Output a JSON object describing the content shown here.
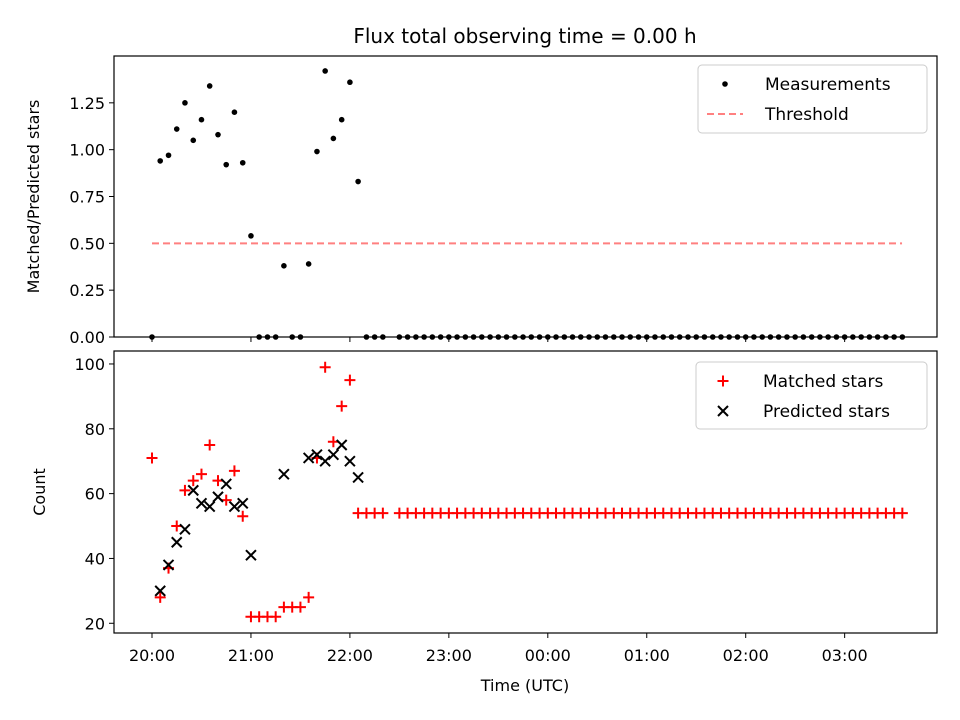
{
  "chart_data": [
    {
      "type": "scatter",
      "title": "Flux total observing time = 0.00 h",
      "xlabel": "",
      "ylabel": "Matched/Predicted stars",
      "ylim": [
        0,
        1.5
      ],
      "yticks": [
        "0.00",
        "0.25",
        "0.50",
        "0.75",
        "1.00",
        "1.25"
      ],
      "legend_position": "upper right",
      "x_units": "hours since 20:00 UTC (axis shows clock time)",
      "series": [
        {
          "name": "Measurements",
          "style": "dots",
          "color": "#000000",
          "x": [
            0.0,
            0.083,
            0.167,
            0.25,
            0.333,
            0.417,
            0.5,
            0.583,
            0.667,
            0.75,
            0.833,
            0.917,
            1.0,
            1.083,
            1.167,
            1.25,
            1.333,
            1.417,
            1.5,
            1.583,
            1.667,
            1.75,
            1.833,
            1.917,
            2.0,
            2.083,
            2.167,
            2.25,
            2.333,
            2.5,
            2.583,
            2.667,
            2.75,
            2.833,
            2.917,
            3.0,
            3.083,
            3.167,
            3.25,
            3.333,
            3.417,
            3.5,
            3.583,
            3.667,
            3.75,
            3.833,
            3.917,
            4.0,
            4.083,
            4.167,
            4.25,
            4.333,
            4.417,
            4.5,
            4.583,
            4.667,
            4.75,
            4.833,
            4.917,
            5.0,
            5.083,
            5.167,
            5.25,
            5.333,
            5.417,
            5.5,
            5.583,
            5.667,
            5.75,
            5.833,
            5.917,
            6.0,
            6.083,
            6.167,
            6.25,
            6.333,
            6.417,
            6.5,
            6.583,
            6.667,
            6.75,
            6.833,
            6.917,
            7.0,
            7.083,
            7.167,
            7.25,
            7.333,
            7.417,
            7.5,
            7.583
          ],
          "y": [
            0,
            0.94,
            0.97,
            1.11,
            1.25,
            1.05,
            1.16,
            1.34,
            1.08,
            0.92,
            1.2,
            0.93,
            0.54,
            0,
            0,
            0,
            0.38,
            0,
            0,
            0.39,
            0.99,
            1.42,
            1.06,
            1.16,
            1.36,
            0.83,
            0,
            0,
            0,
            0,
            0,
            0,
            0,
            0,
            0,
            0,
            0,
            0,
            0,
            0,
            0,
            0,
            0,
            0,
            0,
            0,
            0,
            0,
            0,
            0,
            0,
            0,
            0,
            0,
            0,
            0,
            0,
            0,
            0,
            0,
            0,
            0,
            0,
            0,
            0,
            0,
            0,
            0,
            0,
            0,
            0,
            0,
            0,
            0,
            0,
            0,
            0,
            0,
            0,
            0,
            0,
            0,
            0,
            0,
            0,
            0,
            0,
            0,
            0,
            0,
            0
          ]
        },
        {
          "name": "Threshold",
          "style": "dashed-line",
          "color": "#ff8080",
          "x": [
            0,
            7.58
          ],
          "y": [
            0.5,
            0.5
          ]
        }
      ]
    },
    {
      "type": "scatter",
      "title": "",
      "xlabel": "Time (UTC)",
      "ylabel": "Count",
      "ylim": [
        17,
        104
      ],
      "yticks": [
        "20",
        "40",
        "60",
        "80",
        "100"
      ],
      "xticks": [
        "20:00",
        "21:00",
        "22:00",
        "23:00",
        "00:00",
        "01:00",
        "02:00",
        "03:00"
      ],
      "legend_position": "upper right",
      "x_units": "hours since 20:00 UTC (axis shows clock time)",
      "series": [
        {
          "name": "Matched stars",
          "marker": "plus",
          "color": "#ff0000",
          "x": [
            0.0,
            0.083,
            0.167,
            0.25,
            0.333,
            0.417,
            0.5,
            0.583,
            0.667,
            0.75,
            0.833,
            0.917,
            1.0,
            1.083,
            1.167,
            1.25,
            1.333,
            1.417,
            1.5,
            1.583,
            1.667,
            1.75,
            1.833,
            1.917,
            2.0,
            2.083,
            2.167,
            2.25,
            2.333,
            2.5,
            2.583,
            2.667,
            2.75,
            2.833,
            2.917,
            3.0,
            3.083,
            3.167,
            3.25,
            3.333,
            3.417,
            3.5,
            3.583,
            3.667,
            3.75,
            3.833,
            3.917,
            4.0,
            4.083,
            4.167,
            4.25,
            4.333,
            4.417,
            4.5,
            4.583,
            4.667,
            4.75,
            4.833,
            4.917,
            5.0,
            5.083,
            5.167,
            5.25,
            5.333,
            5.417,
            5.5,
            5.583,
            5.667,
            5.75,
            5.833,
            5.917,
            6.0,
            6.083,
            6.167,
            6.25,
            6.333,
            6.417,
            6.5,
            6.583,
            6.667,
            6.75,
            6.833,
            6.917,
            7.0,
            7.083,
            7.167,
            7.25,
            7.333,
            7.417,
            7.5,
            7.583
          ],
          "y": [
            71,
            28,
            37,
            50,
            61,
            64,
            66,
            75,
            64,
            58,
            67,
            53,
            22,
            22,
            22,
            22,
            25,
            25,
            25,
            28,
            71,
            99,
            76,
            87,
            95,
            54,
            54,
            54,
            54,
            54,
            54,
            54,
            54,
            54,
            54,
            54,
            54,
            54,
            54,
            54,
            54,
            54,
            54,
            54,
            54,
            54,
            54,
            54,
            54,
            54,
            54,
            54,
            54,
            54,
            54,
            54,
            54,
            54,
            54,
            54,
            54,
            54,
            54,
            54,
            54,
            54,
            54,
            54,
            54,
            54,
            54,
            54,
            54,
            54,
            54,
            54,
            54,
            54,
            54,
            54,
            54,
            54,
            54,
            54,
            54,
            54,
            54,
            54,
            54,
            54,
            54
          ]
        },
        {
          "name": "Predicted stars",
          "marker": "x",
          "color": "#000000",
          "x": [
            0.083,
            0.167,
            0.25,
            0.333,
            0.417,
            0.5,
            0.583,
            0.667,
            0.75,
            0.833,
            0.917,
            1.0,
            1.333,
            1.583,
            1.667,
            1.75,
            1.833,
            1.917,
            2.0,
            2.083
          ],
          "y": [
            30,
            38,
            45,
            49,
            61,
            57,
            56,
            59,
            63,
            56,
            57,
            41,
            66,
            71,
            72,
            70,
            72,
            75,
            70,
            65
          ]
        }
      ]
    }
  ]
}
